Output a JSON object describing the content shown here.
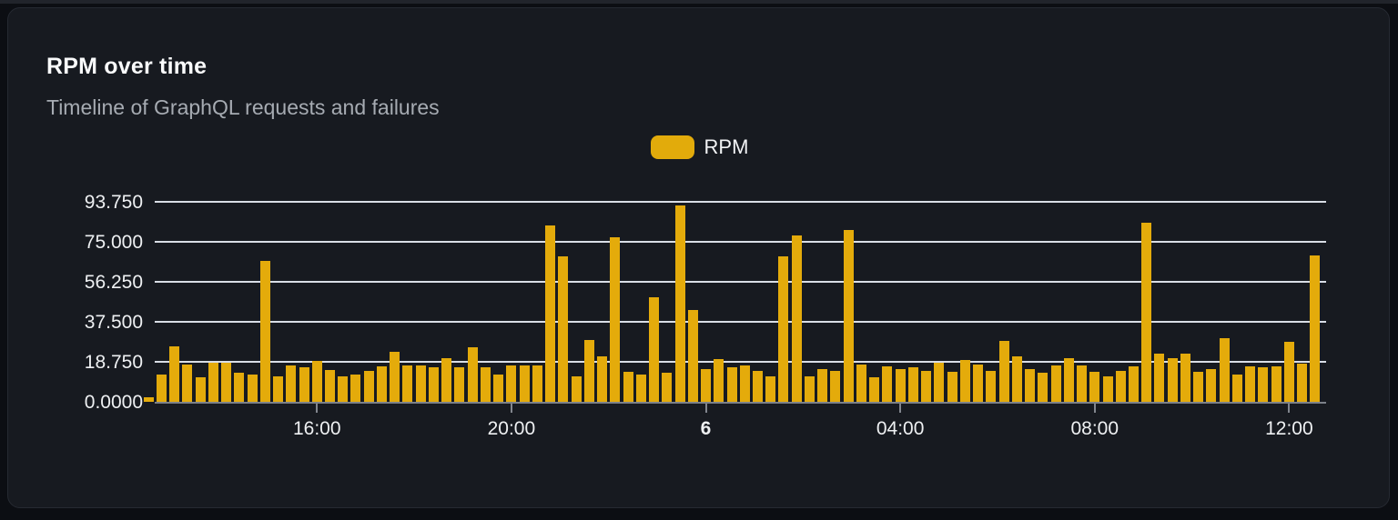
{
  "card": {
    "title": "RPM over time",
    "subtitle": "Timeline of GraphQL requests and failures"
  },
  "legend": {
    "label": "RPM",
    "swatch_color": "#e2ab0b"
  },
  "colors": {
    "page_bg": "#0c0e13",
    "card_bg": "#171a20",
    "bar": "#e4ab0b",
    "gridline": "#d9dee6",
    "axis": "#7c8189",
    "title_text": "#fafbfc",
    "subtitle_text": "#a6abb2",
    "tick_text": "#eef0f2"
  },
  "chart_data": {
    "type": "bar",
    "title": "RPM over time",
    "subtitle": "Timeline of GraphQL requests and failures",
    "series_name": "RPM",
    "xlabel": "",
    "ylabel": "",
    "ylim": [
      0,
      98
    ],
    "grid": true,
    "legend_position": "top-center",
    "bar_color": "#e4ab0b",
    "y_tick_labels": [
      "0.0000",
      "18.750",
      "37.500",
      "56.250",
      "75.000",
      "93.750"
    ],
    "y_tick_values": [
      0,
      18.75,
      37.5,
      56.25,
      75,
      93.75
    ],
    "x_ticks": [
      {
        "index": 13,
        "label": "16:00",
        "bold": false
      },
      {
        "index": 28,
        "label": "20:00",
        "bold": false
      },
      {
        "index": 43,
        "label": "6",
        "bold": true
      },
      {
        "index": 58,
        "label": "04:00",
        "bold": false
      },
      {
        "index": 73,
        "label": "08:00",
        "bold": false
      },
      {
        "index": 88,
        "label": "12:00",
        "bold": false
      }
    ],
    "values": [
      2,
      13,
      26,
      17.5,
      11.5,
      18.5,
      18.5,
      13.5,
      13,
      66,
      12,
      17,
      16,
      19,
      15,
      12,
      13,
      14.5,
      16.5,
      23.5,
      17,
      17,
      16,
      20.5,
      16,
      25.5,
      16,
      13,
      17,
      17,
      17,
      82.5,
      68,
      12,
      29,
      21.5,
      77,
      14,
      13,
      49,
      13.5,
      92,
      43,
      15.5,
      20,
      16,
      17,
      14.5,
      12,
      68,
      78,
      12,
      15.5,
      14.5,
      80.5,
      17.5,
      11.5,
      16.5,
      15.5,
      16,
      14.5,
      18.5,
      14,
      19.5,
      17.5,
      14.5,
      28.5,
      21.5,
      15.5,
      13.5,
      17,
      20.5,
      17,
      14,
      12,
      14.5,
      16.5,
      84,
      22.5,
      20.5,
      22.5,
      14,
      15.5,
      30,
      13,
      16.5,
      16,
      16.5,
      28,
      18,
      68.5
    ]
  }
}
